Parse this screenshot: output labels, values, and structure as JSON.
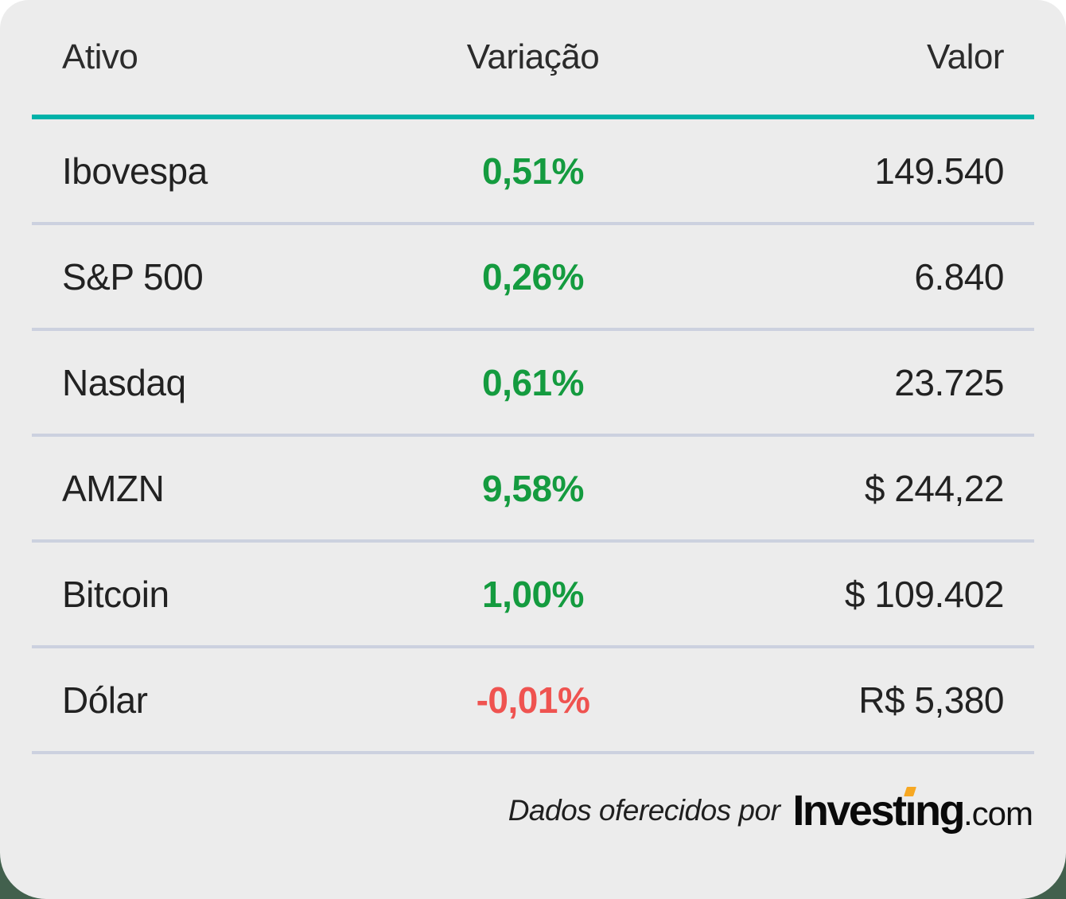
{
  "table": {
    "columns": [
      "Ativo",
      "Variação",
      "Valor"
    ],
    "rows": [
      {
        "ativo": "Ibovespa",
        "variacao": "0,51%",
        "valor": "149.540",
        "direction": "up"
      },
      {
        "ativo": "S&P 500",
        "variacao": "0,26%",
        "valor": "6.840",
        "direction": "up"
      },
      {
        "ativo": "Nasdaq",
        "variacao": "0,61%",
        "valor": "23.725",
        "direction": "up"
      },
      {
        "ativo": "AMZN",
        "variacao": "9,58%",
        "valor": "$ 244,22",
        "direction": "up"
      },
      {
        "ativo": "Bitcoin",
        "variacao": "1,00%",
        "valor": "$ 109.402",
        "direction": "up"
      },
      {
        "ativo": "Dólar",
        "variacao": "-0,01%",
        "valor": "R$ 5,380",
        "direction": "down"
      }
    ]
  },
  "footer": {
    "attribution_text": "Dados oferecidos por",
    "logo": {
      "part1": "Invest",
      "dotless_i": "ı",
      "part2": "ng",
      "suffix": ".com"
    }
  },
  "colors": {
    "card_background": "#ececec",
    "accent_line": "#00b2a9",
    "row_divider": "#ccd1df",
    "positive": "#149b3f",
    "negative": "#ef5350",
    "logo_accent": "#f7a823",
    "page_bottom_background": "#42604d",
    "text": "#222222"
  }
}
